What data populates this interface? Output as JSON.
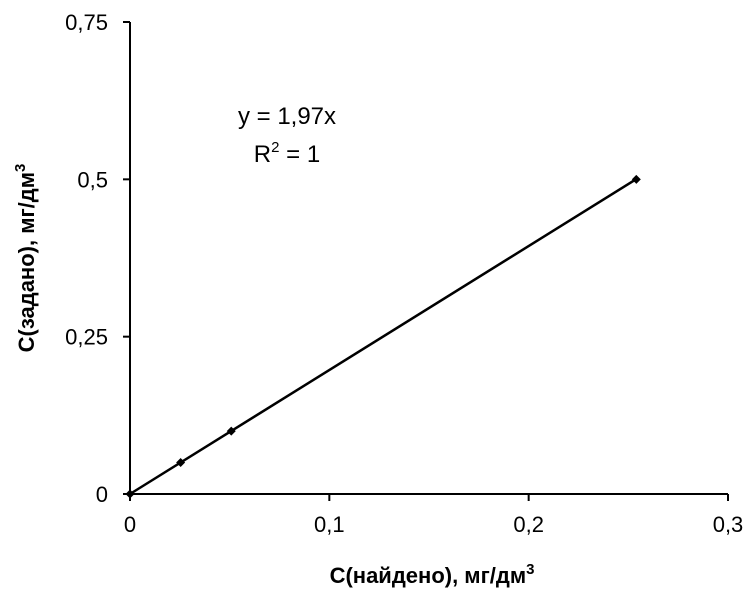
{
  "chart_data": {
    "type": "scatter",
    "xlabel": {
      "text": "С(найдено), мг/дм",
      "sup": "3"
    },
    "ylabel": {
      "text": "С(задано), мг/дм",
      "sup": "3"
    },
    "xlim": [
      0,
      0.3
    ],
    "ylim": [
      0,
      0.75
    ],
    "x_ticks": [
      0,
      0.1,
      0.2,
      0.3
    ],
    "x_tick_labels": [
      "0",
      "0,1",
      "0,2",
      "0,3"
    ],
    "y_ticks": [
      0,
      0.25,
      0.5,
      0.75
    ],
    "y_tick_labels": [
      "0",
      "0,25",
      "0,5",
      "0,75"
    ],
    "grid": false,
    "series": [
      {
        "x": [
          0,
          0.0254,
          0.0508,
          0.254
        ],
        "y": [
          0,
          0.05,
          0.1,
          0.5
        ]
      }
    ],
    "trendline": {
      "slope": 1.97,
      "intercept": 0,
      "x_range": [
        0,
        0.254
      ]
    },
    "annotations": {
      "equation": "y = 1,97x",
      "r2_label": "R",
      "r2_sup": "2",
      "r2_value": " = 1"
    }
  }
}
